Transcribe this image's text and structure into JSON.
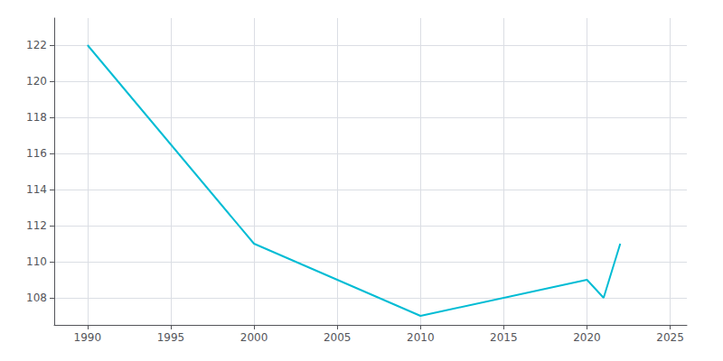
{
  "chart_data": {
    "type": "line",
    "x": [
      1990,
      2000,
      2010,
      2020,
      2021,
      2022
    ],
    "values": [
      122,
      111,
      107,
      109,
      108,
      111
    ],
    "color": "#00bcd4",
    "xlim": [
      1988,
      2026
    ],
    "ylim": [
      106.5,
      123.5
    ],
    "xticks": [
      1990,
      1995,
      2000,
      2005,
      2010,
      2015,
      2020,
      2025
    ],
    "yticks": [
      108,
      110,
      112,
      114,
      116,
      118,
      120,
      122
    ],
    "grid": true
  }
}
